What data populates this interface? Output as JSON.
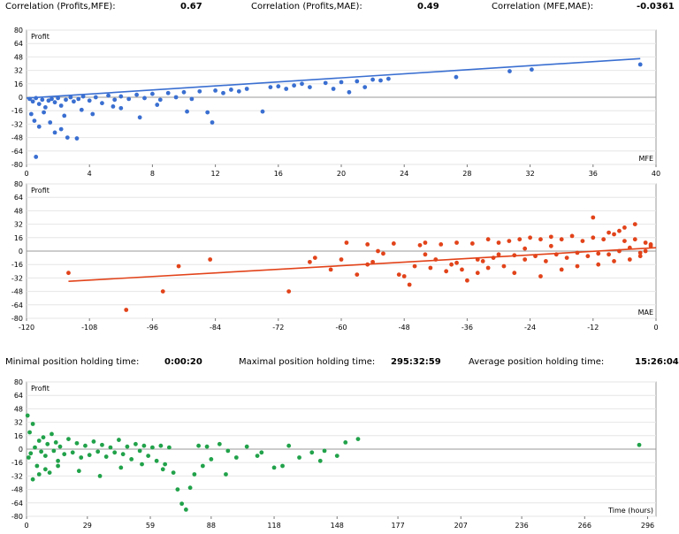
{
  "stats_top": {
    "corr_pm_label": "Correlation (Profits,MFE):",
    "corr_pm_value": "0.67",
    "corr_pmae_label": "Correlation (Profits,MAE):",
    "corr_pmae_value": "0.49",
    "corr_mm_label": "Correlation (MFE,MAE):",
    "corr_mm_value": "-0.0361"
  },
  "stats_mid": {
    "min_label": "Minimal position holding time:",
    "min_value": "0:00:20",
    "max_label": "Maximal position holding time:",
    "max_value": "295:32:59",
    "avg_label": "Average position holding time:",
    "avg_value": "15:26:04"
  },
  "colors": {
    "mfe": "#3a6fd1",
    "mae": "#e2431a",
    "time": "#21a24a",
    "grid": "#e6e6e6",
    "axis": "#7a7a7a"
  },
  "chart_data": [
    {
      "type": "scatter",
      "id": "mfe",
      "ylabel": "Profit",
      "xlabel": "MFE",
      "xlim": [
        0,
        40
      ],
      "ylim": [
        -80,
        80
      ],
      "xticks": [
        0,
        4,
        8,
        12,
        16,
        20,
        24,
        28,
        32,
        36,
        40
      ],
      "yticks": [
        80,
        64,
        48,
        32,
        16,
        0,
        -16,
        -32,
        -48,
        -64,
        -80
      ],
      "trendline": [
        [
          0,
          -1
        ],
        [
          39,
          46
        ]
      ],
      "points": [
        [
          0.2,
          -2
        ],
        [
          0.4,
          -5
        ],
        [
          0.6,
          -1
        ],
        [
          0.8,
          -8
        ],
        [
          1,
          -3
        ],
        [
          1.2,
          -12
        ],
        [
          1.4,
          -4
        ],
        [
          1.6,
          -2
        ],
        [
          1.8,
          -6
        ],
        [
          2,
          -1
        ],
        [
          2.2,
          -10
        ],
        [
          2.5,
          -3
        ],
        [
          2.8,
          0
        ],
        [
          3,
          -5
        ],
        [
          3.3,
          -2
        ],
        [
          3.6,
          1
        ],
        [
          4,
          -4
        ],
        [
          4.4,
          0
        ],
        [
          4.8,
          -7
        ],
        [
          5.2,
          2
        ],
        [
          5.6,
          -3
        ],
        [
          6,
          1
        ],
        [
          6.5,
          -2
        ],
        [
          7,
          3
        ],
        [
          7.5,
          -1
        ],
        [
          8,
          4
        ],
        [
          8.5,
          -3
        ],
        [
          9,
          5
        ],
        [
          9.5,
          0
        ],
        [
          10,
          6
        ],
        [
          10.5,
          -2
        ],
        [
          11,
          7
        ],
        [
          11.5,
          -18
        ],
        [
          12,
          8
        ],
        [
          12.5,
          5
        ],
        [
          13,
          9
        ],
        [
          13.5,
          7
        ],
        [
          14,
          10
        ],
        [
          15,
          -17
        ],
        [
          15.5,
          12
        ],
        [
          16,
          13
        ],
        [
          16.5,
          10
        ],
        [
          17,
          14
        ],
        [
          17.5,
          16
        ],
        [
          18,
          12
        ],
        [
          19,
          17
        ],
        [
          19.5,
          10
        ],
        [
          20,
          18
        ],
        [
          20.5,
          6
        ],
        [
          21,
          19
        ],
        [
          21.5,
          12
        ],
        [
          22,
          21
        ],
        [
          22.5,
          20
        ],
        [
          23,
          22
        ],
        [
          27.3,
          24
        ],
        [
          30.7,
          31
        ],
        [
          32.1,
          33
        ],
        [
          39,
          39
        ],
        [
          0.5,
          -28
        ],
        [
          0.8,
          -35
        ],
        [
          1.5,
          -30
        ],
        [
          1.8,
          -42
        ],
        [
          2.2,
          -38
        ],
        [
          2.6,
          -48
        ],
        [
          3.2,
          -49
        ],
        [
          0.6,
          -71
        ],
        [
          3.5,
          -15
        ],
        [
          4.2,
          -20
        ],
        [
          6,
          -13
        ],
        [
          7.2,
          -24
        ],
        [
          10.2,
          -17
        ],
        [
          11.8,
          -30
        ],
        [
          0.3,
          -20
        ],
        [
          1.1,
          -18
        ],
        [
          2.4,
          -22
        ],
        [
          5.5,
          -11
        ],
        [
          8.3,
          -9
        ]
      ]
    },
    {
      "type": "scatter",
      "id": "mae",
      "ylabel": "Profit",
      "xlabel": "MAE",
      "xlim": [
        -120,
        0
      ],
      "ylim": [
        -80,
        80
      ],
      "xticks": [
        -120,
        -108,
        -96,
        -84,
        -72,
        -60,
        -48,
        -36,
        -24,
        -12,
        0
      ],
      "yticks": [
        80,
        64,
        48,
        32,
        16,
        0,
        -16,
        -32,
        -48,
        -64,
        -80
      ],
      "trendline": [
        [
          -112,
          -36
        ],
        [
          0,
          4
        ]
      ],
      "points": [
        [
          -112,
          -26
        ],
        [
          -101,
          -70
        ],
        [
          -94,
          -48
        ],
        [
          -91,
          -18
        ],
        [
          -85,
          -10
        ],
        [
          -70,
          -48
        ],
        [
          -66,
          -13
        ],
        [
          -62,
          -22
        ],
        [
          -59,
          10
        ],
        [
          -57,
          -28
        ],
        [
          -55,
          8
        ],
        [
          -54,
          -13
        ],
        [
          -52,
          -3
        ],
        [
          -50,
          9
        ],
        [
          -49,
          -28
        ],
        [
          -48,
          -30
        ],
        [
          -47,
          -40
        ],
        [
          -46,
          -18
        ],
        [
          -45,
          7
        ],
        [
          -44,
          10
        ],
        [
          -43,
          -20
        ],
        [
          -42,
          -10
        ],
        [
          -41,
          8
        ],
        [
          -40,
          -24
        ],
        [
          -39,
          -16
        ],
        [
          -38,
          10
        ],
        [
          -37,
          -22
        ],
        [
          -36,
          -35
        ],
        [
          -35,
          9
        ],
        [
          -34,
          -26
        ],
        [
          -33,
          -12
        ],
        [
          -32,
          14
        ],
        [
          -31,
          -8
        ],
        [
          -30,
          10
        ],
        [
          -29,
          -18
        ],
        [
          -28,
          12
        ],
        [
          -27,
          -5
        ],
        [
          -26,
          14
        ],
        [
          -25,
          -10
        ],
        [
          -24,
          16
        ],
        [
          -23,
          -6
        ],
        [
          -22,
          14
        ],
        [
          -21,
          -12
        ],
        [
          -20,
          17
        ],
        [
          -19,
          -4
        ],
        [
          -18,
          14
        ],
        [
          -17,
          -8
        ],
        [
          -16,
          18
        ],
        [
          -15,
          -2
        ],
        [
          -14,
          12
        ],
        [
          -13,
          -6
        ],
        [
          -12,
          16
        ],
        [
          -11,
          -3
        ],
        [
          -10,
          14
        ],
        [
          -9,
          -4
        ],
        [
          -8,
          20
        ],
        [
          -7,
          0
        ],
        [
          -6,
          28
        ],
        [
          -5,
          4
        ],
        [
          -4,
          14
        ],
        [
          -3,
          -2
        ],
        [
          -2,
          10
        ],
        [
          -1,
          6
        ],
        [
          -12,
          40
        ],
        [
          -4,
          32
        ],
        [
          -7,
          24
        ],
        [
          -60,
          -10
        ],
        [
          -53,
          0
        ],
        [
          -65,
          -8
        ],
        [
          -55,
          -16
        ],
        [
          -44,
          -4
        ],
        [
          -38,
          -14
        ],
        [
          -32,
          -20
        ],
        [
          -27,
          -26
        ],
        [
          -22,
          -30
        ],
        [
          -18,
          -22
        ],
        [
          -15,
          -18
        ],
        [
          -11,
          -16
        ],
        [
          -8,
          -12
        ],
        [
          -5,
          -10
        ],
        [
          -3,
          -6
        ],
        [
          -2,
          0
        ],
        [
          -1,
          8
        ],
        [
          -9,
          22
        ],
        [
          -6,
          12
        ],
        [
          -20,
          6
        ],
        [
          -25,
          3
        ],
        [
          -30,
          -4
        ],
        [
          -34,
          -10
        ]
      ]
    },
    {
      "type": "scatter",
      "id": "time",
      "ylabel": "Profit",
      "xlabel": "Time (hours)",
      "xlim": [
        0,
        300
      ],
      "ylim": [
        -80,
        80
      ],
      "xticks": [
        0,
        29,
        59,
        88,
        118,
        148,
        177,
        207,
        236,
        266,
        296
      ],
      "yticks": [
        80,
        64,
        48,
        32,
        16,
        0,
        -16,
        -32,
        -48,
        -64,
        -80
      ],
      "points": [
        [
          0.5,
          40
        ],
        [
          1,
          -10
        ],
        [
          1.5,
          20
        ],
        [
          2,
          -5
        ],
        [
          3,
          30
        ],
        [
          4,
          2
        ],
        [
          5,
          -20
        ],
        [
          6,
          10
        ],
        [
          7,
          -3
        ],
        [
          8,
          14
        ],
        [
          9,
          -8
        ],
        [
          10,
          6
        ],
        [
          11,
          -28
        ],
        [
          12,
          18
        ],
        [
          13,
          -2
        ],
        [
          14,
          8
        ],
        [
          15,
          -14
        ],
        [
          16,
          3
        ],
        [
          18,
          -6
        ],
        [
          20,
          12
        ],
        [
          22,
          -4
        ],
        [
          24,
          7
        ],
        [
          26,
          -10
        ],
        [
          28,
          4
        ],
        [
          30,
          -7
        ],
        [
          32,
          9
        ],
        [
          34,
          -3
        ],
        [
          36,
          5
        ],
        [
          38,
          -9
        ],
        [
          40,
          2
        ],
        [
          42,
          -4
        ],
        [
          44,
          11
        ],
        [
          46,
          -6
        ],
        [
          48,
          3
        ],
        [
          50,
          -12
        ],
        [
          52,
          6
        ],
        [
          54,
          -2
        ],
        [
          56,
          4
        ],
        [
          58,
          -8
        ],
        [
          60,
          2
        ],
        [
          62,
          -14
        ],
        [
          64,
          4
        ],
        [
          66,
          -18
        ],
        [
          68,
          2
        ],
        [
          70,
          -28
        ],
        [
          72,
          -48
        ],
        [
          74,
          -65
        ],
        [
          76,
          -72
        ],
        [
          78,
          -46
        ],
        [
          80,
          -30
        ],
        [
          82,
          4
        ],
        [
          84,
          -20
        ],
        [
          86,
          3
        ],
        [
          88,
          -12
        ],
        [
          92,
          6
        ],
        [
          96,
          -2
        ],
        [
          100,
          -10
        ],
        [
          105,
          3
        ],
        [
          112,
          -4
        ],
        [
          118,
          -22
        ],
        [
          122,
          -20
        ],
        [
          125,
          4
        ],
        [
          130,
          -10
        ],
        [
          136,
          -4
        ],
        [
          142,
          -2
        ],
        [
          148,
          -8
        ],
        [
          152,
          8
        ],
        [
          158,
          12
        ],
        [
          292,
          5
        ],
        [
          3,
          -36
        ],
        [
          6,
          -30
        ],
        [
          9,
          -24
        ],
        [
          15,
          -20
        ],
        [
          25,
          -26
        ],
        [
          35,
          -32
        ],
        [
          45,
          -22
        ],
        [
          55,
          -18
        ],
        [
          65,
          -24
        ],
        [
          95,
          -30
        ],
        [
          110,
          -8
        ],
        [
          140,
          -14
        ]
      ]
    }
  ]
}
